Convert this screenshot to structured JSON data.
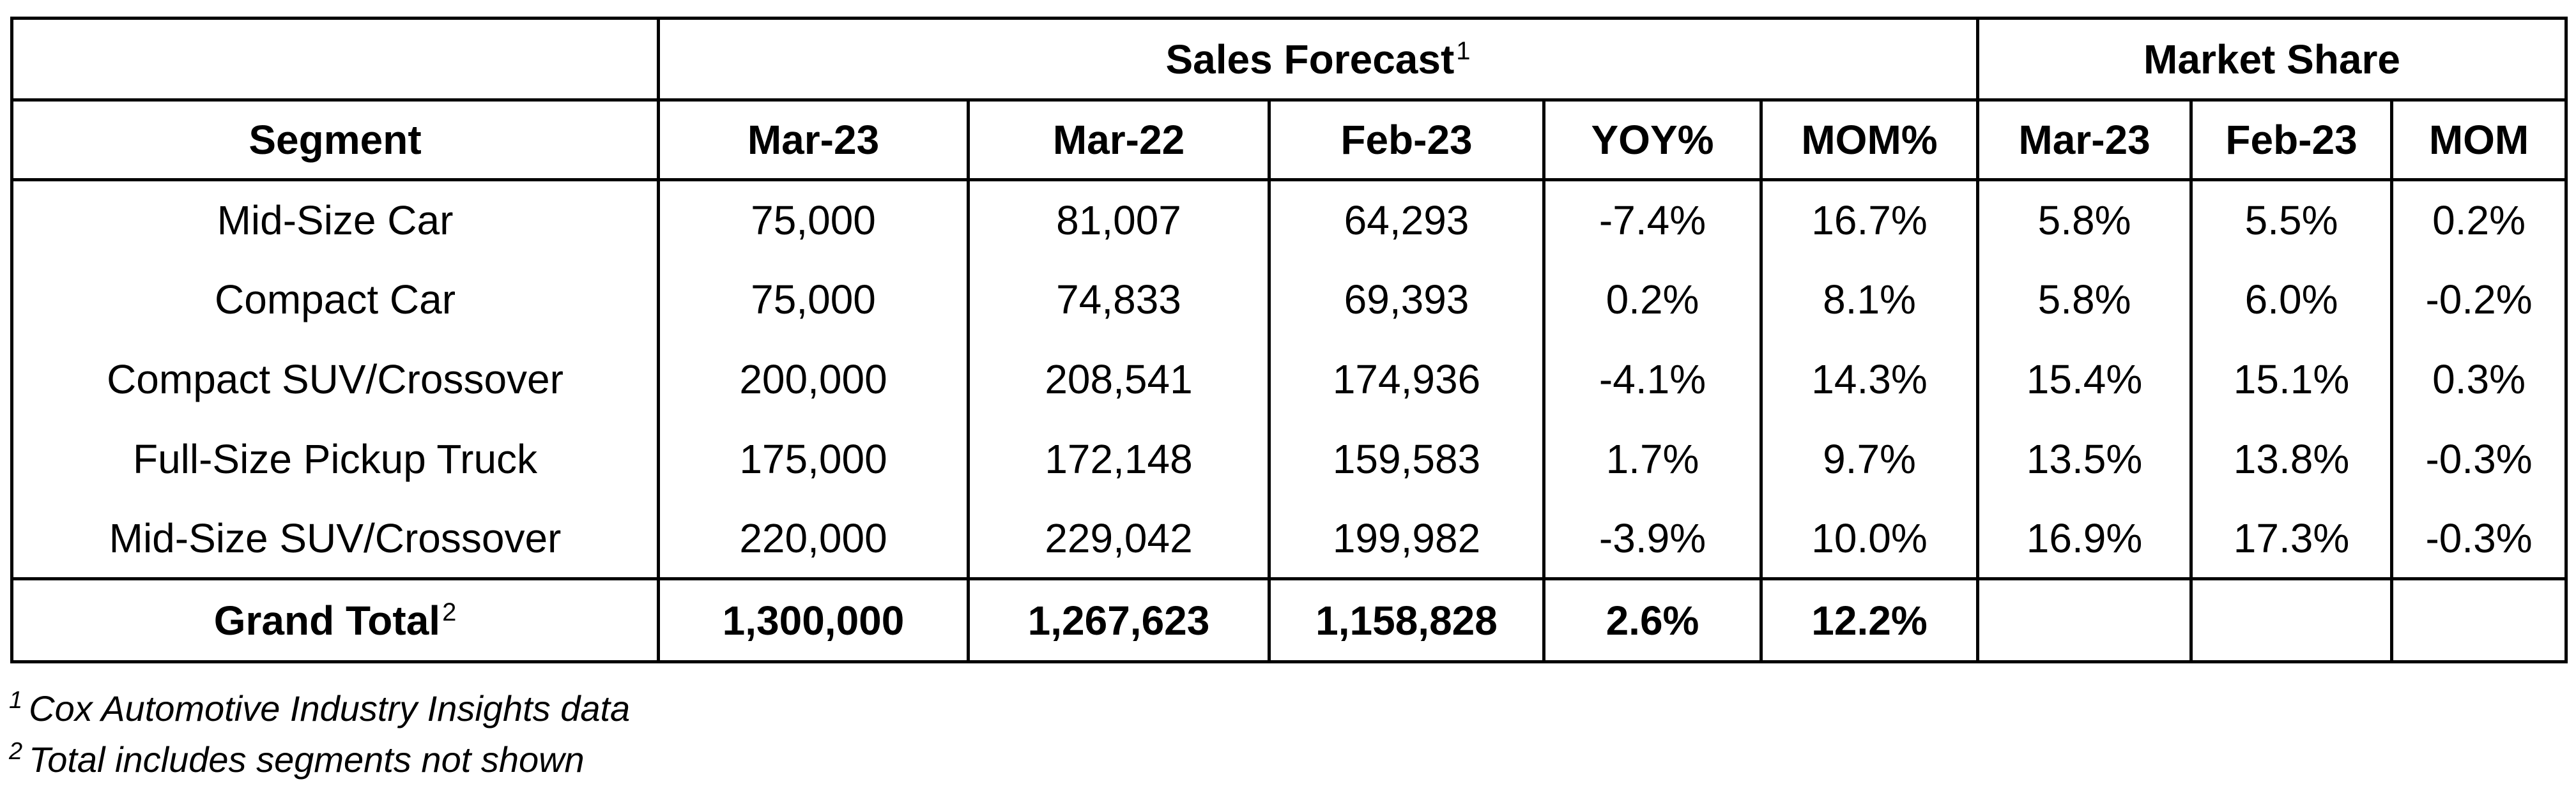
{
  "table": {
    "group_headers": {
      "sales_forecast": "Sales Forecast",
      "sales_forecast_note": "1",
      "market_share": "Market Share"
    },
    "columns": [
      "Segment",
      "Mar-23",
      "Mar-22",
      "Feb-23",
      "YOY%",
      "MOM%",
      "Mar-23",
      "Feb-23",
      "MOM"
    ],
    "rows": [
      [
        "Mid-Size Car",
        "75,000",
        "81,007",
        "64,293",
        "-7.4%",
        "16.7%",
        "5.8%",
        "5.5%",
        "0.2%"
      ],
      [
        "Compact Car",
        "75,000",
        "74,833",
        "69,393",
        "0.2%",
        "8.1%",
        "5.8%",
        "6.0%",
        "-0.2%"
      ],
      [
        "Compact SUV/Crossover",
        "200,000",
        "208,541",
        "174,936",
        "-4.1%",
        "14.3%",
        "15.4%",
        "15.1%",
        "0.3%"
      ],
      [
        "Full-Size Pickup Truck",
        "175,000",
        "172,148",
        "159,583",
        "1.7%",
        "9.7%",
        "13.5%",
        "13.8%",
        "-0.3%"
      ],
      [
        "Mid-Size SUV/Crossover",
        "220,000",
        "229,042",
        "199,982",
        "-3.9%",
        "10.0%",
        "16.9%",
        "17.3%",
        "-0.3%"
      ]
    ],
    "total": {
      "label": "Grand Total",
      "note": "2",
      "values": [
        "1,300,000",
        "1,267,623",
        "1,158,828",
        "2.6%",
        "12.2%",
        "",
        "",
        ""
      ]
    }
  },
  "footnotes": [
    {
      "marker": "1",
      "text": "Cox Automotive Industry Insights data"
    },
    {
      "marker": "2",
      "text": "Total includes segments not shown"
    }
  ]
}
